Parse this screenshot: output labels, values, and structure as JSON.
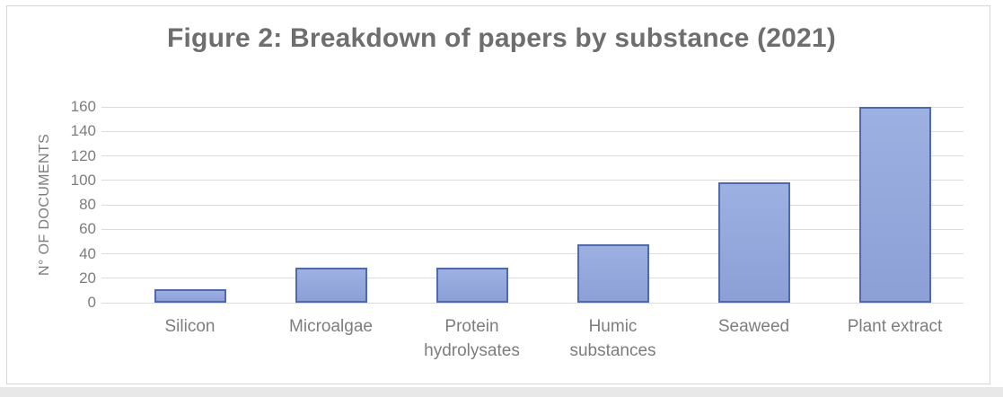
{
  "figure": {
    "bottom_strip_color": "#e8e8e8",
    "frame_border_color": "#d6d6d6"
  },
  "chart_data": {
    "type": "bar",
    "title": "Figure 2: Breakdown of papers by substance (2021)",
    "categories": [
      "Silicon",
      "Microalgae",
      "Protein hydrolysates",
      "Humic substances",
      "Seaweed",
      "Plant extract"
    ],
    "values": [
      11,
      29,
      29,
      48,
      98,
      160
    ],
    "xlabel": "",
    "ylabel": "N° OF DOCUMENTS",
    "ylim": [
      0,
      160
    ],
    "ytick_step": 20,
    "yticks": [
      0,
      20,
      40,
      60,
      80,
      100,
      120,
      140,
      160
    ],
    "grid": "horizontal",
    "legend": "none",
    "colors": {
      "bar_fill_top": "#9DB0E2",
      "bar_fill_bottom": "#8CA0D6",
      "bar_border": "#4D69B1",
      "gridline": "#dcdcdc",
      "title_text": "#6e6e6e",
      "axis_text": "#7d7d7d"
    }
  }
}
